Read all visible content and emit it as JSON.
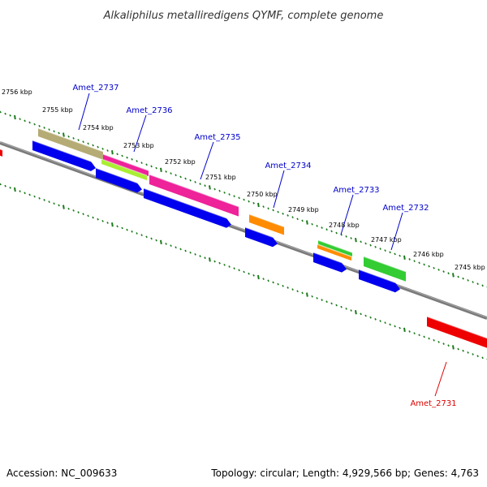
{
  "title": "Alkaliphilus metalliredigens QYMF, complete genome",
  "footer": {
    "accession": "Accession: NC_009633",
    "summary": "Topology: circular; Length: 4,929,566 bp; Genes: 4,763"
  },
  "colors": {
    "backbone": "#808080",
    "tick": "#1a7a1a",
    "label_top": "#0000cc",
    "label_bottom": "#dd0000",
    "cds_strand": "#0000ee",
    "reverse_cds": "#ee0000"
  },
  "kbp_labels": [
    "2756 kbp",
    "2755 kbp",
    "2754 kbp",
    "2753 kbp",
    "2752 kbp",
    "2751 kbp",
    "2750 kbp",
    "2749 kbp",
    "2748 kbp",
    "2747 kbp",
    "2746 kbp",
    "2745 kbp"
  ],
  "genes": [
    {
      "name": "Amet_2737",
      "strand": "top"
    },
    {
      "name": "Amet_2736",
      "strand": "top"
    },
    {
      "name": "Amet_2735",
      "strand": "top"
    },
    {
      "name": "Amet_2734",
      "strand": "top"
    },
    {
      "name": "Amet_2733",
      "strand": "top"
    },
    {
      "name": "Amet_2732",
      "strand": "top"
    },
    {
      "name": "Amet_2731",
      "strand": "bottom"
    }
  ]
}
